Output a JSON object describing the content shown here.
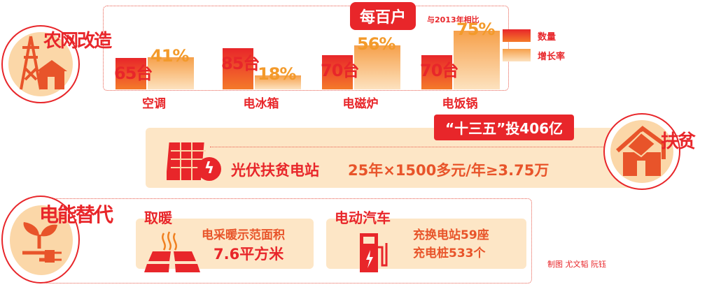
{
  "sections": {
    "rural": {
      "title": "农网改造",
      "badge": "每百户",
      "note": "与2013年相比"
    },
    "poverty": {
      "title": "扶贫",
      "banner": "“十三五”投406亿",
      "station": "光伏扶贫电站",
      "formula": "25年×1500多元/年≥3.75万"
    },
    "substitution": {
      "title": "电能替代",
      "heating": {
        "title": "取暖",
        "line1": "电采暖示范面积",
        "line2": "7.6平方米"
      },
      "ev": {
        "title": "电动汽车",
        "line1": "充换电站59座",
        "line2": "充电桩533个"
      }
    }
  },
  "credit": "制图 尤文韬 阮钰",
  "colors": {
    "accent": "#e8262a",
    "orange": "#f6a04a",
    "cream": "#fde6c6"
  },
  "chart_data": {
    "type": "bar",
    "categories": [
      "空调",
      "电冰箱",
      "电磁炉",
      "电饭锅"
    ],
    "series": [
      {
        "name": "数量",
        "values": [
          65,
          85,
          70,
          70
        ],
        "labels": [
          "65台",
          "85台",
          "70台",
          "70台"
        ]
      },
      {
        "name": "增长率",
        "values": [
          41,
          18,
          56,
          75
        ],
        "labels": [
          "41%",
          "18%",
          "56%",
          "75%"
        ]
      }
    ],
    "legend": "right"
  }
}
